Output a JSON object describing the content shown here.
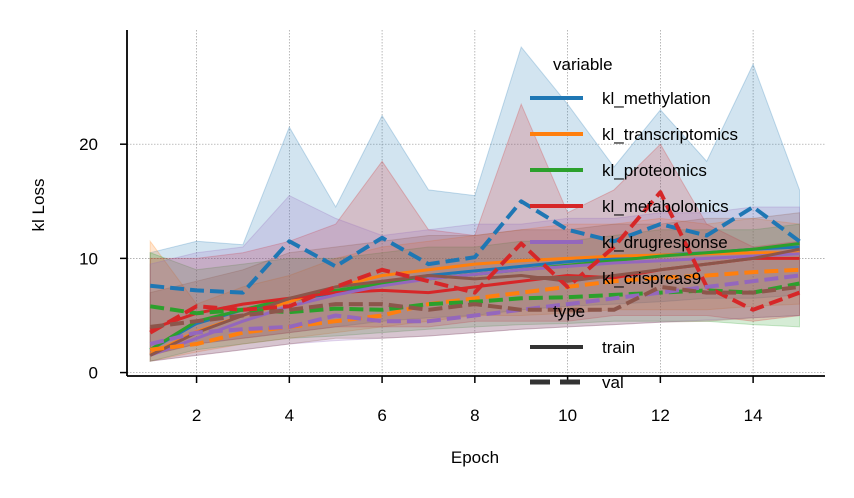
{
  "chart_data": {
    "type": "line",
    "xlabel": "Epoch",
    "ylabel": "kl Loss",
    "xlim": [
      0.5,
      15.55
    ],
    "ylim": [
      -0.3,
      30
    ],
    "xticks": [
      2,
      4,
      6,
      8,
      10,
      12,
      14
    ],
    "yticks": [
      0,
      10,
      20
    ],
    "grid": true,
    "legend": {
      "placement": "top-right",
      "variable_title": "variable",
      "type_title": "type",
      "types": [
        {
          "name": "train",
          "style": "solid"
        },
        {
          "name": "val",
          "style": "dashed"
        }
      ]
    },
    "x": [
      1,
      2,
      3,
      4,
      5,
      6,
      7,
      8,
      9,
      10,
      11,
      12,
      13,
      14,
      15
    ],
    "series": [
      {
        "name": "kl_methylation",
        "color": "#1f77b4",
        "train": [
          2.0,
          4.3,
          5.5,
          6.3,
          7.0,
          7.8,
          8.5,
          8.9,
          9.3,
          9.7,
          10.0,
          10.3,
          10.5,
          10.8,
          11.0
        ],
        "val": [
          7.6,
          7.2,
          7.0,
          11.5,
          9.3,
          11.8,
          9.5,
          10.1,
          15.0,
          12.5,
          11.5,
          13.0,
          12.0,
          14.5,
          11.5
        ],
        "band_lo": [
          1.5,
          2.5,
          3.0,
          3.5,
          4.0,
          4.5,
          4.8,
          5.0,
          5.5,
          5.8,
          6.0,
          6.2,
          6.5,
          6.5,
          6.8
        ],
        "band_hi": [
          10.5,
          11.5,
          11.2,
          21.5,
          14.5,
          22.5,
          16.0,
          15.5,
          28.5,
          23.5,
          18.0,
          23.0,
          18.5,
          27.0,
          16.0
        ]
      },
      {
        "name": "kl_transcriptomics",
        "color": "#ff7f0e",
        "train": [
          1.6,
          3.6,
          5.0,
          6.2,
          7.5,
          8.5,
          9.0,
          9.5,
          9.8,
          10.0,
          10.2,
          10.3,
          10.4,
          10.5,
          10.5
        ],
        "val": [
          2.0,
          2.5,
          3.5,
          4.0,
          4.5,
          5.0,
          6.0,
          6.5,
          7.0,
          7.5,
          8.0,
          8.3,
          8.5,
          8.8,
          9.0
        ],
        "band_lo": [
          1.0,
          1.8,
          2.5,
          3.0,
          3.5,
          4.0,
          4.5,
          5.0,
          5.0,
          5.2,
          5.5,
          5.5,
          5.5,
          5.8,
          6.0
        ],
        "band_hi": [
          11.5,
          6.0,
          7.5,
          8.5,
          10.0,
          11.0,
          11.5,
          12.0,
          12.5,
          13.0,
          13.0,
          13.5,
          13.0,
          13.5,
          13.0
        ]
      },
      {
        "name": "kl_proteomics",
        "color": "#2ca02c",
        "train": [
          2.0,
          4.5,
          5.5,
          6.5,
          7.2,
          7.8,
          8.2,
          8.6,
          9.0,
          9.4,
          9.8,
          10.2,
          10.5,
          10.8,
          11.3
        ],
        "val": [
          5.8,
          5.2,
          5.5,
          5.3,
          5.6,
          5.5,
          6.0,
          6.2,
          6.5,
          6.6,
          6.8,
          7.0,
          7.2,
          7.0,
          7.8
        ],
        "band_lo": [
          1.0,
          2.0,
          2.5,
          3.0,
          3.2,
          3.5,
          3.8,
          4.0,
          4.2,
          4.3,
          4.5,
          4.5,
          4.5,
          4.2,
          4.0
        ],
        "band_hi": [
          10.5,
          9.0,
          9.5,
          10.0,
          10.0,
          10.5,
          11.0,
          11.0,
          11.5,
          11.5,
          12.0,
          12.5,
          12.5,
          12.5,
          13.0
        ]
      },
      {
        "name": "kl_metabolomics",
        "color": "#d62728",
        "train": [
          3.8,
          5.2,
          6.0,
          6.5,
          7.0,
          7.2,
          7.0,
          7.5,
          8.0,
          8.5,
          8.3,
          9.0,
          9.5,
          10.0,
          10.0
        ],
        "val": [
          3.5,
          5.8,
          5.5,
          5.8,
          7.5,
          9.0,
          8.0,
          7.0,
          11.3,
          7.5,
          11.0,
          15.8,
          7.5,
          5.5,
          7.0
        ],
        "band_lo": [
          1.5,
          2.5,
          3.0,
          3.5,
          4.0,
          4.0,
          4.0,
          4.5,
          4.5,
          4.5,
          5.0,
          5.0,
          5.0,
          4.5,
          5.0
        ],
        "band_hi": [
          10.0,
          10.0,
          10.5,
          11.5,
          13.0,
          18.5,
          12.5,
          12.0,
          23.5,
          14.0,
          16.0,
          20.0,
          13.0,
          11.0,
          11.5
        ]
      },
      {
        "name": "kl_drugresponse",
        "color": "#9467bd",
        "train": [
          1.5,
          3.0,
          4.5,
          5.8,
          6.8,
          7.6,
          8.2,
          8.6,
          9.0,
          9.3,
          9.6,
          9.8,
          10.0,
          10.2,
          10.4
        ],
        "val": [
          2.5,
          3.5,
          3.8,
          4.0,
          5.0,
          4.5,
          4.5,
          5.0,
          5.5,
          6.0,
          6.5,
          7.0,
          7.5,
          8.0,
          8.5
        ],
        "band_lo": [
          1.0,
          1.5,
          2.0,
          2.5,
          2.8,
          3.0,
          3.2,
          3.5,
          3.8,
          4.0,
          4.2,
          4.4,
          4.6,
          4.8,
          5.0
        ],
        "band_hi": [
          9.5,
          10.5,
          11.0,
          15.5,
          13.5,
          12.0,
          12.5,
          13.0,
          13.0,
          13.5,
          13.5,
          14.0,
          14.0,
          14.5,
          14.5
        ]
      },
      {
        "name": "kl_crisprcas9",
        "color": "#8c564b",
        "train": [
          1.5,
          3.5,
          5.0,
          6.5,
          7.5,
          8.0,
          8.5,
          8.2,
          8.5,
          8.0,
          8.5,
          9.0,
          9.5,
          10.0,
          10.8
        ],
        "val": [
          4.0,
          4.5,
          5.0,
          5.5,
          6.0,
          6.0,
          5.5,
          6.0,
          5.5,
          5.5,
          5.5,
          7.5,
          7.0,
          7.0,
          7.5
        ],
        "band_lo": [
          1.0,
          1.5,
          2.0,
          2.5,
          3.0,
          3.0,
          3.2,
          3.5,
          3.8,
          4.0,
          4.2,
          4.4,
          4.5,
          4.8,
          5.0
        ],
        "band_hi": [
          7.0,
          8.0,
          9.0,
          10.5,
          11.0,
          11.5,
          12.0,
          12.0,
          12.5,
          12.5,
          13.0,
          13.0,
          13.5,
          13.5,
          14.0
        ]
      }
    ]
  }
}
